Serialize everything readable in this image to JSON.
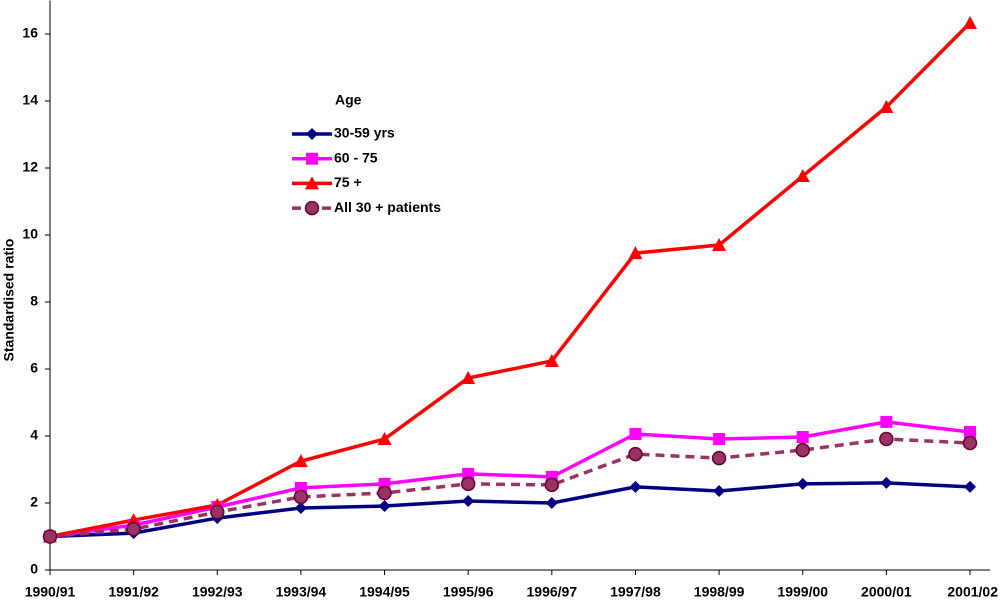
{
  "chart_data": {
    "type": "line",
    "y_label": "Standardised ratio",
    "legend_title": "Age",
    "categories": [
      "1990/91",
      "1991/92",
      "1992/93",
      "1993/94",
      "1994/95",
      "1995/96",
      "1996/97",
      "1997/98",
      "1998/99",
      "1999/00",
      "2000/01",
      "2001/02"
    ],
    "series": [
      {
        "name": "30-59 yrs",
        "color": "#000080",
        "marker": "diamond",
        "line_style": "solid",
        "values": [
          1.0,
          1.1,
          1.55,
          1.85,
          1.91,
          2.06,
          2.0,
          2.48,
          2.36,
          2.57,
          2.6,
          2.48
        ]
      },
      {
        "name": "60 - 75",
        "color": "#ff00ff",
        "marker": "square",
        "line_style": "solid",
        "values": [
          1.0,
          1.34,
          1.88,
          2.45,
          2.57,
          2.87,
          2.78,
          4.06,
          3.91,
          3.97,
          4.42,
          4.12
        ]
      },
      {
        "name": "75 +",
        "color": "#ff0000",
        "marker": "triangle",
        "line_style": "solid",
        "values": [
          1.0,
          1.49,
          1.94,
          3.25,
          3.91,
          5.73,
          6.24,
          9.46,
          9.7,
          11.76,
          13.82,
          16.33
        ]
      },
      {
        "name": "All 30 + patients",
        "color": "#993366",
        "marker": "circle",
        "line_style": "dashed",
        "values": [
          1.0,
          1.22,
          1.73,
          2.18,
          2.3,
          2.57,
          2.54,
          3.46,
          3.34,
          3.58,
          3.91,
          3.79
        ]
      }
    ],
    "ylim": [
      0,
      17
    ],
    "yticks": [
      0,
      2,
      4,
      6,
      8,
      10,
      12,
      14,
      16
    ],
    "grid": false,
    "legend_position": "upper-left"
  }
}
